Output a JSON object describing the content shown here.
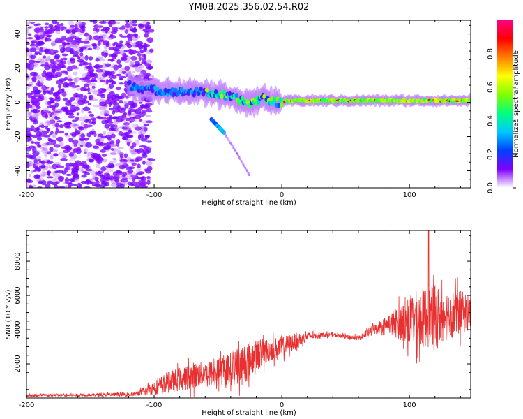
{
  "title": "YM08.2025.356.02.54.R02",
  "chart_data": [
    {
      "type": "heatmap",
      "name": "spectrogram",
      "xlabel": "Height of straight line (km)",
      "ylabel": "Frequency (Hz)",
      "xlim": [
        -200,
        148
      ],
      "ylim": [
        -50,
        48
      ],
      "x_ticks": [
        -200,
        -100,
        0,
        100
      ],
      "x_tick_labels": [
        "-200",
        "-100",
        "0",
        "100"
      ],
      "y_ticks": [
        -40,
        -20,
        0,
        20,
        40
      ],
      "y_tick_labels": [
        "-40",
        "-20",
        "0",
        "20",
        "40"
      ],
      "colorbar": {
        "label": "Normalized spectral amplitude",
        "range": [
          0,
          1
        ],
        "ticks": [
          0.0,
          0.2,
          0.4,
          0.6,
          0.8
        ],
        "tick_labels": [
          "0.0",
          "0.2",
          "0.4",
          "0.6",
          "0.8"
        ],
        "colors": [
          "#ffffff",
          "#8000ff",
          "#0040ff",
          "#00c8ff",
          "#00ff80",
          "#80ff00",
          "#ffff00",
          "#ff8000",
          "#ff0000",
          "#ff0080"
        ]
      },
      "features": {
        "noise_region_x": [
          -200,
          -110
        ],
        "ridge": [
          {
            "x": -120,
            "y": 10
          },
          {
            "x": -100,
            "y": 7
          },
          {
            "x": -80,
            "y": 6
          },
          {
            "x": -60,
            "y": 6
          },
          {
            "x": -45,
            "y": 4
          },
          {
            "x": -35,
            "y": 2
          },
          {
            "x": -25,
            "y": -1
          },
          {
            "x": -15,
            "y": 3
          },
          {
            "x": -5,
            "y": 0
          },
          {
            "x": 10,
            "y": 1
          },
          {
            "x": 50,
            "y": 1
          },
          {
            "x": 100,
            "y": 1
          },
          {
            "x": 148,
            "y": 1
          }
        ],
        "branch": [
          {
            "x": -55,
            "y": -10
          },
          {
            "x": -45,
            "y": -18
          },
          {
            "x": -35,
            "y": -30
          },
          {
            "x": -25,
            "y": -43
          }
        ]
      }
    },
    {
      "type": "line",
      "name": "snr",
      "xlabel": "Height of straight line (km)",
      "ylabel": "SNR (10 * v/v)",
      "xlim": [
        -200,
        148
      ],
      "ylim": [
        0,
        9800
      ],
      "x_ticks": [
        -200,
        -100,
        0,
        100
      ],
      "x_tick_labels": [
        "-200",
        "-100",
        "0",
        "100"
      ],
      "y_ticks": [
        2000,
        4000,
        6000,
        8000
      ],
      "y_tick_labels": [
        "2000",
        "4000",
        "6000",
        "8000"
      ],
      "color": "#e83030",
      "envelope": {
        "x": [
          -200,
          -150,
          -115,
          -100,
          -90,
          -80,
          -70,
          -60,
          -50,
          -40,
          -30,
          -25,
          -20,
          -10,
          0,
          10,
          20,
          30,
          40,
          50,
          60,
          70,
          80,
          90,
          100,
          110,
          120,
          130,
          140,
          148
        ],
        "mean": [
          150,
          180,
          220,
          600,
          900,
          1100,
          1300,
          1400,
          1500,
          1700,
          2000,
          2300,
          2500,
          2800,
          3000,
          3300,
          3600,
          3700,
          3700,
          3600,
          3500,
          3900,
          4300,
          4400,
          4500,
          4700,
          4800,
          4900,
          5000,
          5000
        ],
        "spread": [
          80,
          80,
          120,
          400,
          600,
          700,
          800,
          700,
          800,
          1000,
          1300,
          1100,
          900,
          700,
          600,
          500,
          250,
          150,
          120,
          120,
          150,
          300,
          400,
          900,
          1500,
          1800,
          1800,
          1500,
          1300,
          1000
        ]
      },
      "peak": {
        "x": 115,
        "y": 9800
      }
    }
  ]
}
